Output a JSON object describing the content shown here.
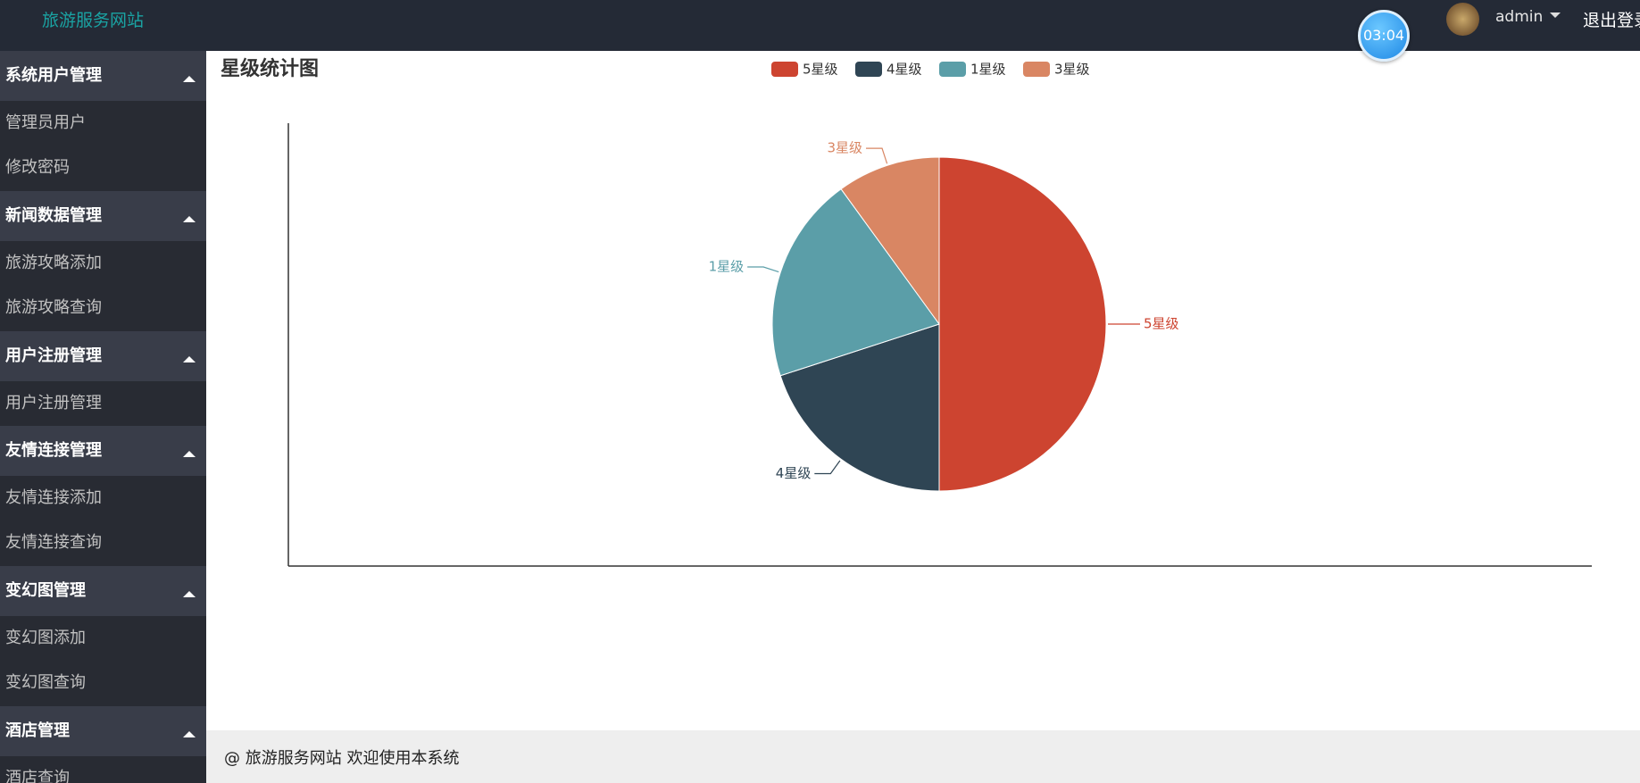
{
  "header": {
    "site_name": "旅游服务网站",
    "timer": "03:04",
    "user": "admin",
    "logout": "退出登录"
  },
  "sidebar": {
    "groups": [
      {
        "title": "系统用户管理",
        "items": [
          "管理员用户",
          "修改密码"
        ]
      },
      {
        "title": "新闻数据管理",
        "items": [
          "旅游攻略添加",
          "旅游攻略查询"
        ]
      },
      {
        "title": "用户注册管理",
        "items": [
          "用户注册管理"
        ]
      },
      {
        "title": "友情连接管理",
        "items": [
          "友情连接添加",
          "友情连接查询"
        ]
      },
      {
        "title": "变幻图管理",
        "items": [
          "变幻图添加",
          "变幻图查询"
        ]
      },
      {
        "title": "酒店管理",
        "items": [
          "酒店查询"
        ]
      }
    ]
  },
  "chart_data": {
    "type": "pie",
    "title": "星级统计图",
    "categories": [
      "5星级",
      "4星级",
      "1星级",
      "3星级"
    ],
    "values": [
      5,
      2,
      2,
      1
    ],
    "colors": [
      "#cd4430",
      "#2f4554",
      "#5b9ea8",
      "#d98663"
    ],
    "legend": "top"
  },
  "footer": {
    "text": "@ 旅游服务网站 欢迎使用本系统"
  }
}
